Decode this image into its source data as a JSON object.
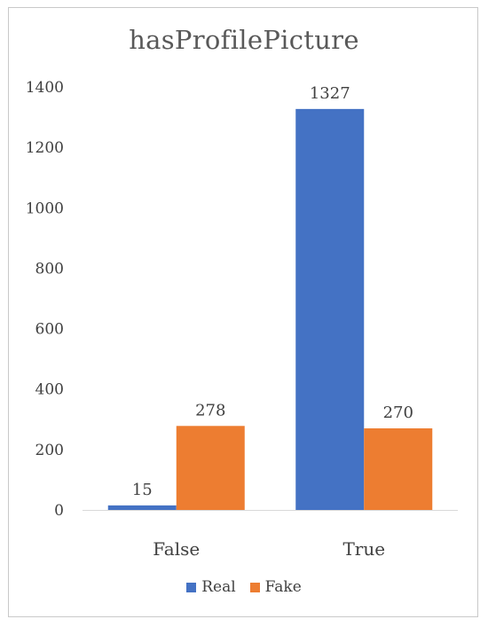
{
  "chart_data": {
    "type": "bar",
    "title": "hasProfilePicture",
    "categories": [
      "False",
      "True"
    ],
    "series": [
      {
        "name": "Real",
        "values": [
          15,
          1327
        ],
        "color": "#4472C4"
      },
      {
        "name": "Fake",
        "values": [
          278,
          270
        ],
        "color": "#ED7D31"
      }
    ],
    "ylim": [
      0,
      1400
    ],
    "yticks": [
      0,
      200,
      400,
      600,
      800,
      1000,
      1200,
      1400
    ],
    "grid": false,
    "legend_position": "bottom"
  }
}
